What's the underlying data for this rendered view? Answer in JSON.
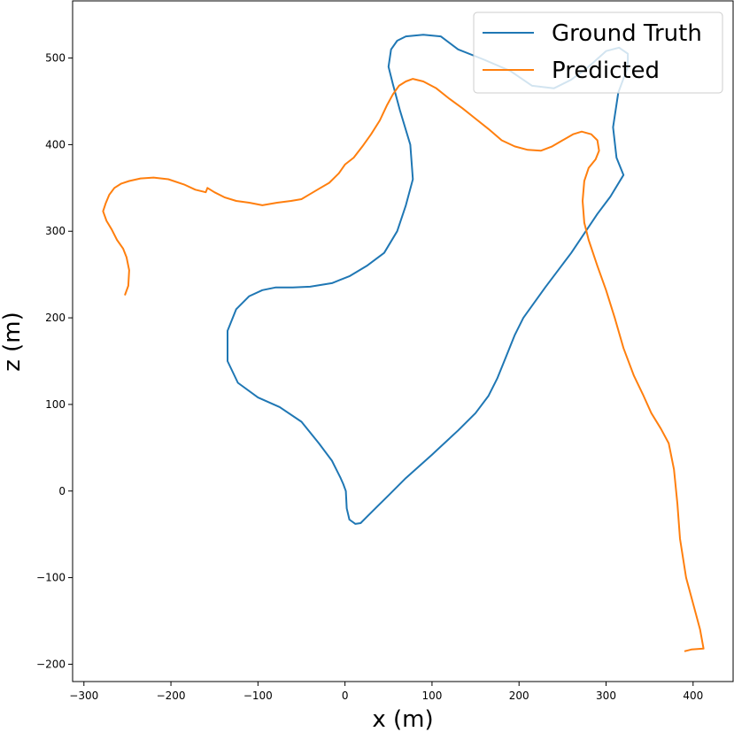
{
  "chart_data": {
    "type": "line",
    "title": "",
    "xlabel": "x (m)",
    "ylabel": "z (m)",
    "xlim": [
      -313,
      446
    ],
    "ylim": [
      -220,
      566
    ],
    "xticks": [
      -300,
      -200,
      -100,
      0,
      100,
      200,
      300,
      400
    ],
    "yticks": [
      -200,
      -100,
      0,
      100,
      200,
      300,
      400,
      500
    ],
    "xtick_labels": [
      "−300",
      "−200",
      "−100",
      "0",
      "100",
      "200",
      "300",
      "400"
    ],
    "ytick_labels": [
      "−200",
      "−100",
      "0",
      "100",
      "200",
      "300",
      "400",
      "500"
    ],
    "grid": false,
    "legend_position": "top-right",
    "series": [
      {
        "name": "Ground Truth",
        "color": "#1f77b4",
        "points": [
          [
            -2,
            8
          ],
          [
            1,
            0
          ],
          [
            2,
            -20
          ],
          [
            5,
            -33
          ],
          [
            12,
            -38
          ],
          [
            18,
            -37
          ],
          [
            25,
            -30
          ],
          [
            35,
            -20
          ],
          [
            50,
            -5
          ],
          [
            70,
            15
          ],
          [
            100,
            42
          ],
          [
            130,
            70
          ],
          [
            150,
            90
          ],
          [
            165,
            110
          ],
          [
            175,
            130
          ],
          [
            185,
            155
          ],
          [
            195,
            180
          ],
          [
            205,
            200
          ],
          [
            230,
            235
          ],
          [
            260,
            275
          ],
          [
            290,
            320
          ],
          [
            305,
            340
          ],
          [
            320,
            365
          ],
          [
            312,
            385
          ],
          [
            308,
            420
          ],
          [
            314,
            460
          ],
          [
            325,
            490
          ],
          [
            325,
            505
          ],
          [
            315,
            512
          ],
          [
            300,
            508
          ],
          [
            280,
            490
          ],
          [
            260,
            475
          ],
          [
            240,
            465
          ],
          [
            215,
            468
          ],
          [
            190,
            485
          ],
          [
            160,
            498
          ],
          [
            130,
            510
          ],
          [
            110,
            525
          ],
          [
            90,
            527
          ],
          [
            70,
            525
          ],
          [
            60,
            520
          ],
          [
            53,
            510
          ],
          [
            50,
            490
          ],
          [
            55,
            470
          ],
          [
            63,
            440
          ],
          [
            75,
            400
          ],
          [
            78,
            360
          ],
          [
            70,
            330
          ],
          [
            60,
            300
          ],
          [
            45,
            275
          ],
          [
            25,
            260
          ],
          [
            5,
            248
          ],
          [
            -15,
            240
          ],
          [
            -40,
            236
          ],
          [
            -60,
            235
          ],
          [
            -80,
            235
          ],
          [
            -95,
            232
          ],
          [
            -110,
            225
          ],
          [
            -125,
            210
          ],
          [
            -135,
            185
          ],
          [
            -135,
            150
          ],
          [
            -123,
            125
          ],
          [
            -100,
            108
          ],
          [
            -75,
            97
          ],
          [
            -50,
            80
          ],
          [
            -30,
            55
          ],
          [
            -15,
            35
          ],
          [
            -5,
            15
          ],
          [
            -2,
            8
          ]
        ]
      },
      {
        "name": "Predicted",
        "color": "#ff7f0e",
        "points": [
          [
            -253,
            226
          ],
          [
            -249,
            237
          ],
          [
            -248,
            255
          ],
          [
            -251,
            270
          ],
          [
            -255,
            280
          ],
          [
            -262,
            290
          ],
          [
            -268,
            302
          ],
          [
            -274,
            312
          ],
          [
            -278,
            323
          ],
          [
            -275,
            332
          ],
          [
            -271,
            342
          ],
          [
            -265,
            350
          ],
          [
            -257,
            355
          ],
          [
            -248,
            358
          ],
          [
            -235,
            361
          ],
          [
            -220,
            362
          ],
          [
            -203,
            360
          ],
          [
            -185,
            354
          ],
          [
            -172,
            348
          ],
          [
            -160,
            345
          ],
          [
            -158,
            350
          ],
          [
            -150,
            345
          ],
          [
            -138,
            339
          ],
          [
            -125,
            335
          ],
          [
            -110,
            333
          ],
          [
            -95,
            330
          ],
          [
            -78,
            333
          ],
          [
            -62,
            335
          ],
          [
            -50,
            337
          ],
          [
            -40,
            343
          ],
          [
            -30,
            349
          ],
          [
            -18,
            356
          ],
          [
            -7,
            367
          ],
          [
            0,
            377
          ],
          [
            10,
            385
          ],
          [
            20,
            398
          ],
          [
            30,
            412
          ],
          [
            40,
            428
          ],
          [
            48,
            445
          ],
          [
            55,
            458
          ],
          [
            62,
            468
          ],
          [
            70,
            473
          ],
          [
            78,
            476
          ],
          [
            90,
            473
          ],
          [
            105,
            465
          ],
          [
            120,
            453
          ],
          [
            135,
            442
          ],
          [
            150,
            430
          ],
          [
            165,
            418
          ],
          [
            180,
            405
          ],
          [
            195,
            398
          ],
          [
            210,
            394
          ],
          [
            225,
            393
          ],
          [
            238,
            398
          ],
          [
            250,
            405
          ],
          [
            262,
            412
          ],
          [
            272,
            415
          ],
          [
            283,
            412
          ],
          [
            290,
            405
          ],
          [
            292,
            393
          ],
          [
            288,
            383
          ],
          [
            280,
            373
          ],
          [
            275,
            358
          ],
          [
            273,
            335
          ],
          [
            275,
            310
          ],
          [
            280,
            290
          ],
          [
            290,
            260
          ],
          [
            300,
            232
          ],
          [
            310,
            200
          ],
          [
            320,
            165
          ],
          [
            332,
            133
          ],
          [
            343,
            110
          ],
          [
            352,
            90
          ],
          [
            363,
            72
          ],
          [
            372,
            55
          ],
          [
            378,
            25
          ],
          [
            382,
            -15
          ],
          [
            385,
            -55
          ],
          [
            392,
            -100
          ],
          [
            400,
            -130
          ],
          [
            408,
            -160
          ],
          [
            412,
            -182
          ],
          [
            398,
            -183
          ],
          [
            390,
            -185
          ]
        ]
      }
    ]
  }
}
